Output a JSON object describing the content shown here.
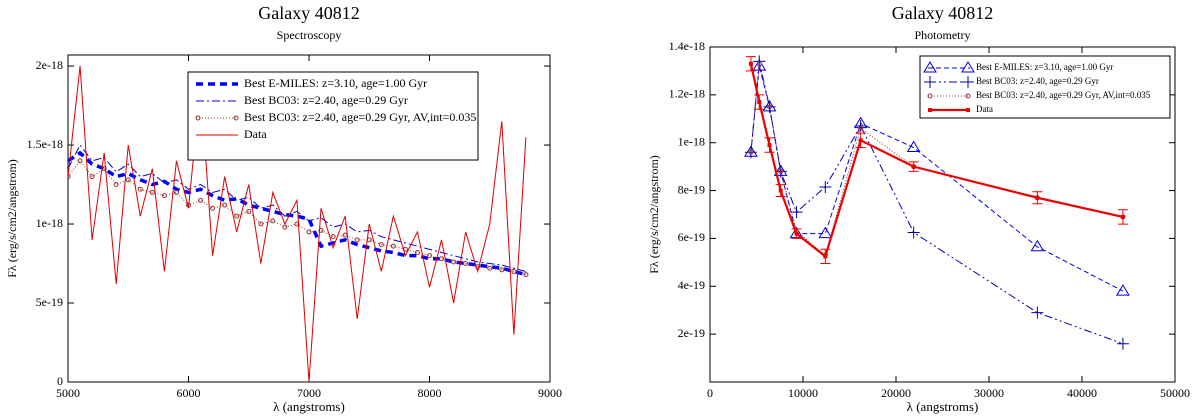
{
  "chart_data": [
    {
      "type": "line",
      "title": "Galaxy 40812",
      "subtitle": "Spectroscopy",
      "xlabel": "λ (angstroms)",
      "ylabel": "Fλ (erg/s/cm2/angstrom)",
      "xlim": [
        5000,
        9000
      ],
      "ylim": [
        0,
        2.07e-18
      ],
      "xticks": [
        5000,
        6000,
        7000,
        8000,
        9000
      ],
      "yticks": [
        0,
        5e-19,
        1e-18,
        1.5e-18,
        2e-18
      ],
      "legend": "upper right",
      "x": [
        5000,
        5100,
        5200,
        5300,
        5400,
        5500,
        5600,
        5700,
        5800,
        5900,
        6000,
        6100,
        6200,
        6300,
        6400,
        6500,
        6600,
        6700,
        6800,
        6900,
        7000,
        7100,
        7200,
        7300,
        7400,
        7500,
        7600,
        7700,
        7800,
        7900,
        8000,
        8100,
        8200,
        8300,
        8400,
        8500,
        8600,
        8700,
        8800
      ],
      "series": [
        {
          "name": "Best E-MILES: z=3.10, age=1.00 Gyr",
          "color": "#0000ff",
          "dash": "7,5",
          "width": 3.5,
          "marker": "none",
          "values": [
            1.4e-18,
            1.45e-18,
            1.38e-18,
            1.35e-18,
            1.3e-18,
            1.32e-18,
            1.28e-18,
            1.25e-18,
            1.27e-18,
            1.22e-18,
            1.2e-18,
            1.22e-18,
            1.18e-18,
            1.15e-18,
            1.16e-18,
            1.12e-18,
            1.1e-18,
            1.08e-18,
            1.06e-18,
            1.05e-18,
            1.03e-18,
            8.6e-19,
            8.8e-19,
            9e-19,
            8.7e-19,
            8.5e-19,
            8.3e-19,
            8.2e-19,
            8e-19,
            8e-19,
            7.8e-19,
            7.8e-19,
            7.6e-19,
            7.5e-19,
            7.4e-19,
            7.3e-19,
            7.2e-19,
            7e-19,
            6.8e-19
          ]
        },
        {
          "name": "Best BC03: z=2.40, age=0.29 Gyr",
          "color": "#0000cc",
          "dash": "8,3,2,3",
          "width": 1,
          "marker": "none",
          "values": [
            1.35e-18,
            1.5e-18,
            1.4e-18,
            1.42e-18,
            1.33e-18,
            1.38e-18,
            1.3e-18,
            1.32e-18,
            1.26e-18,
            1.28e-18,
            1.22e-18,
            1.25e-18,
            1.2e-18,
            1.22e-18,
            1.15e-18,
            1.17e-18,
            1.1e-18,
            1.12e-18,
            1.05e-18,
            1.08e-18,
            1.02e-18,
            1.04e-18,
            9.8e-19,
            1e-18,
            9.5e-19,
            9.6e-19,
            9.2e-19,
            9e-19,
            8.8e-19,
            8.6e-19,
            8.4e-19,
            8.2e-19,
            8e-19,
            7.8e-19,
            7.6e-19,
            7.5e-19,
            7.4e-19,
            7.2e-19,
            7e-19
          ]
        },
        {
          "name": "Best BC03: z=2.40, age=0.29 Gyr, AV,int=0.035",
          "color": "#993333",
          "dash": "1,2",
          "width": 1,
          "marker": "circle",
          "values": [
            1.3e-18,
            1.4e-18,
            1.3e-18,
            1.35e-18,
            1.25e-18,
            1.28e-18,
            1.22e-18,
            1.2e-18,
            1.18e-18,
            1.2e-18,
            1.12e-18,
            1.15e-18,
            1.1e-18,
            1.12e-18,
            1.05e-18,
            1.08e-18,
            1e-18,
            1.02e-18,
            9.8e-19,
            1e-18,
            9.5e-19,
            9.6e-19,
            9.2e-19,
            9.3e-19,
            9e-19,
            9e-19,
            8.7e-19,
            8.6e-19,
            8.4e-19,
            8.2e-19,
            8e-19,
            7.8e-19,
            7.6e-19,
            7.5e-19,
            7.3e-19,
            7.2e-19,
            7.1e-19,
            7e-19,
            6.8e-19
          ]
        },
        {
          "name": "Data",
          "color": "#dd0000",
          "dash": "",
          "width": 1,
          "marker": "none",
          "values": [
            1.3e-18,
            2e-18,
            9e-19,
            1.45e-18,
            6.2e-19,
            1.5e-18,
            1.05e-18,
            1.35e-18,
            7e-19,
            1.4e-18,
            1.1e-18,
            1.88e-18,
            8e-19,
            1.3e-18,
            9.5e-19,
            1.25e-18,
            7.5e-19,
            1.2e-18,
            1e-18,
            1.15e-18,
            0,
            1.1e-18,
            8.5e-19,
            1.05e-18,
            4e-19,
            1e-18,
            7e-19,
            1.05e-18,
            8e-19,
            9.5e-19,
            6e-19,
            9e-19,
            5e-19,
            9.5e-19,
            7e-19,
            1e-18,
            1.65e-18,
            3e-19,
            1.55e-18
          ]
        }
      ]
    },
    {
      "type": "line",
      "title": "Galaxy 40812",
      "subtitle": "Photometry",
      "xlabel": "λ (angstroms)",
      "ylabel": "Fλ (erg/s/cm2/angstrom)",
      "xlim": [
        0,
        50000
      ],
      "ylim": [
        0,
        1.4e-18
      ],
      "xticks": [
        0,
        10000,
        20000,
        30000,
        40000,
        50000
      ],
      "yticks": [
        2e-19,
        4e-19,
        6e-19,
        8e-19,
        1e-18,
        1.2e-18,
        1.4e-18
      ],
      "legend": "upper right",
      "x": [
        4400,
        5300,
        6400,
        7600,
        9300,
        12400,
        16200,
        21900,
        35200,
        44400
      ],
      "series": [
        {
          "name": "Best E-MILES: z=3.10, age=1.00 Gyr",
          "color": "#0000dd",
          "dash": "5,3",
          "width": 1,
          "marker": "triangle",
          "values": [
            9.6e-19,
            1.32e-18,
            1.15e-18,
            8.8e-19,
            6.2e-19,
            6.2e-19,
            1.08e-18,
            9.8e-19,
            5.65e-19,
            3.8e-19
          ]
        },
        {
          "name": "Best BC03: z=2.40, age=0.29 Gyr",
          "color": "#0000aa",
          "dash": "8,3,2,3,2,3",
          "width": 1,
          "marker": "plus",
          "values": [
            9.6e-19,
            1.34e-18,
            1.15e-18,
            8.8e-19,
            7.1e-19,
            8.15e-19,
            1.07e-18,
            6.25e-19,
            2.9e-19,
            1.6e-19
          ]
        },
        {
          "name": "Best BC03: z=2.40, age=0.29 Gyr, AV,int=0.035",
          "color": "#993333",
          "dash": "1,2",
          "width": 1,
          "marker": "circle",
          "values": [
            9.6e-19,
            1.33e-18,
            1.15e-18,
            8.8e-19,
            6.3e-19,
            5.3e-19,
            1.06e-18,
            9e-19,
            7.7e-19,
            6.9e-19
          ]
        },
        {
          "name": "Data",
          "color": "#ee0000",
          "dash": "",
          "width": 2.2,
          "marker": "square",
          "values": [
            1.33e-18,
            1.17e-18,
            9.9e-19,
            8e-19,
            6.2e-19,
            5.25e-19,
            1.01e-18,
            9e-19,
            7.7e-19,
            6.9e-19
          ],
          "errors": [
            3e-20,
            3e-20,
            3e-20,
            2.5e-20,
            2e-20,
            3e-20,
            3e-20,
            2e-20,
            2.5e-20,
            3e-20
          ]
        }
      ]
    }
  ]
}
